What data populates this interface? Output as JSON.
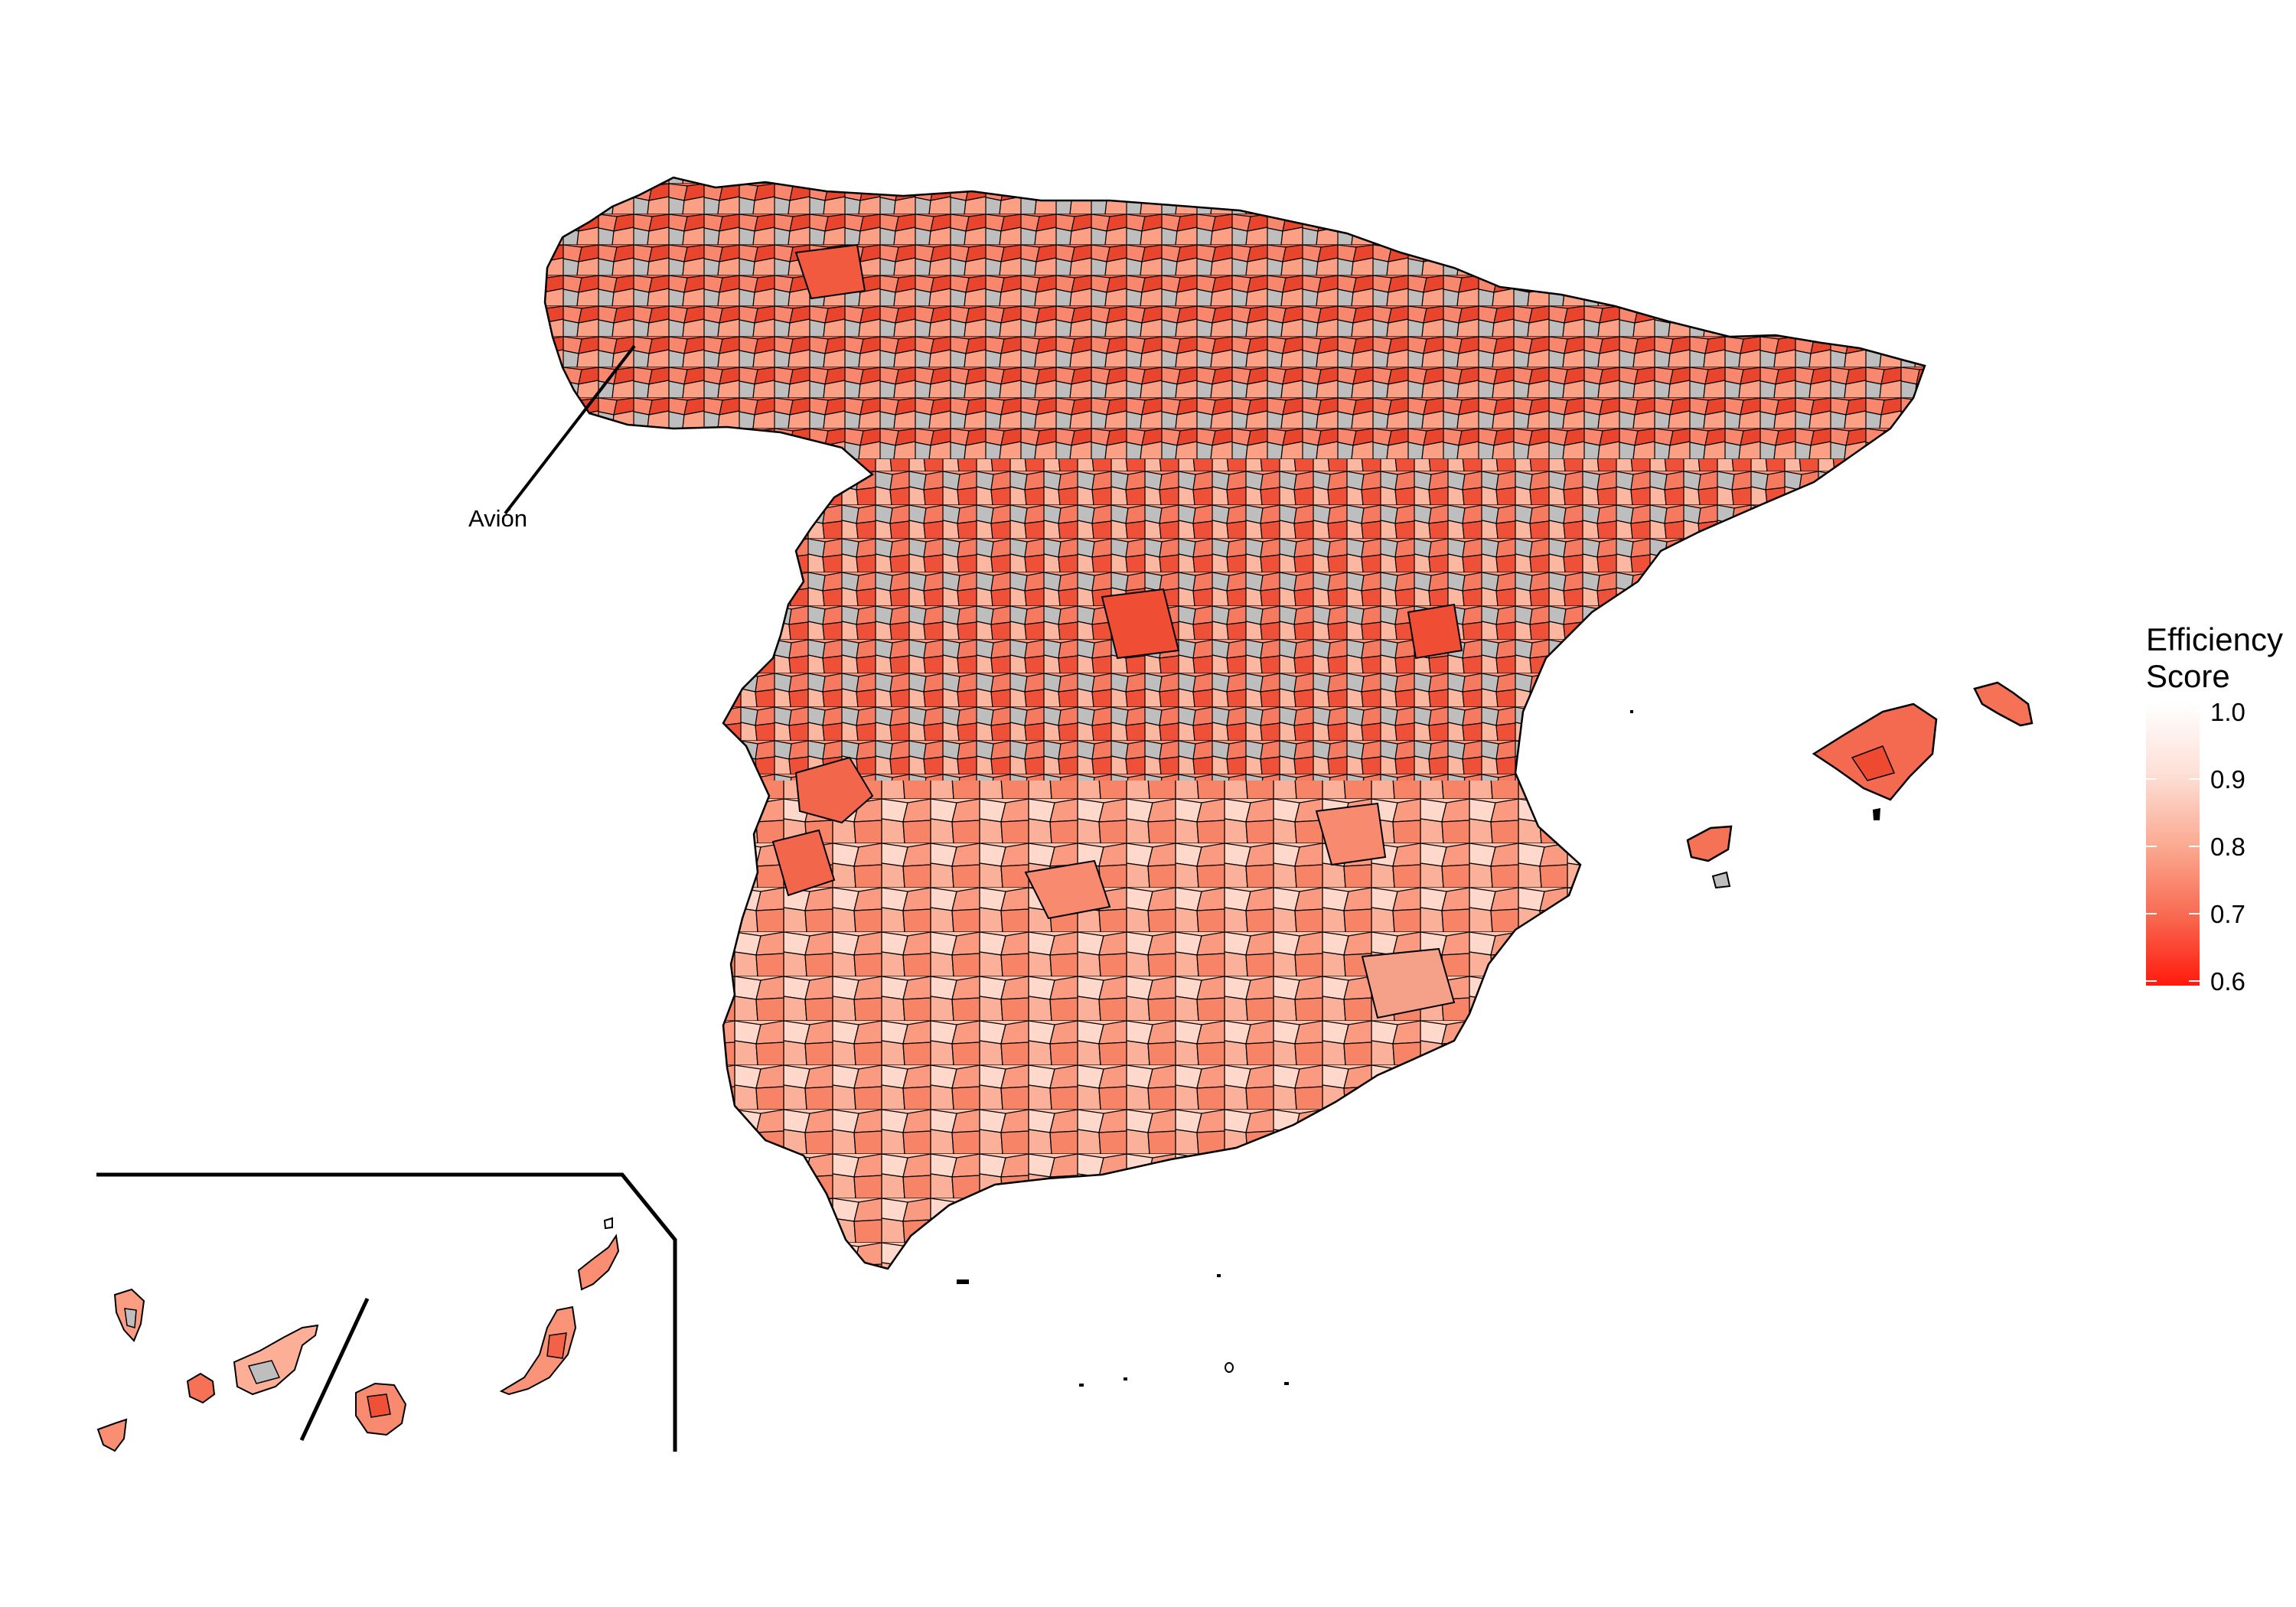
{
  "legend": {
    "title_line1": "Efficiency",
    "title_line2": "Score",
    "ticks": [
      {
        "value": 1.0,
        "label": "1.0"
      },
      {
        "value": 0.9,
        "label": "0.9"
      },
      {
        "value": 0.8,
        "label": "0.8"
      },
      {
        "value": 0.7,
        "label": "0.7"
      },
      {
        "value": 0.6,
        "label": "0.6"
      }
    ],
    "scale_min": 0.6,
    "scale_max": 1.0,
    "color_low": "#ff1a0d",
    "color_high": "#ffffff",
    "na_color": "#bebebe"
  },
  "annotation": {
    "label": "Avión"
  },
  "colors": {
    "border": "#000000",
    "high_efficiency": "#fdd5c7",
    "mid_efficiency": "#fa9c83",
    "low_efficiency": "#f2543c",
    "missing": "#bebebe"
  }
}
